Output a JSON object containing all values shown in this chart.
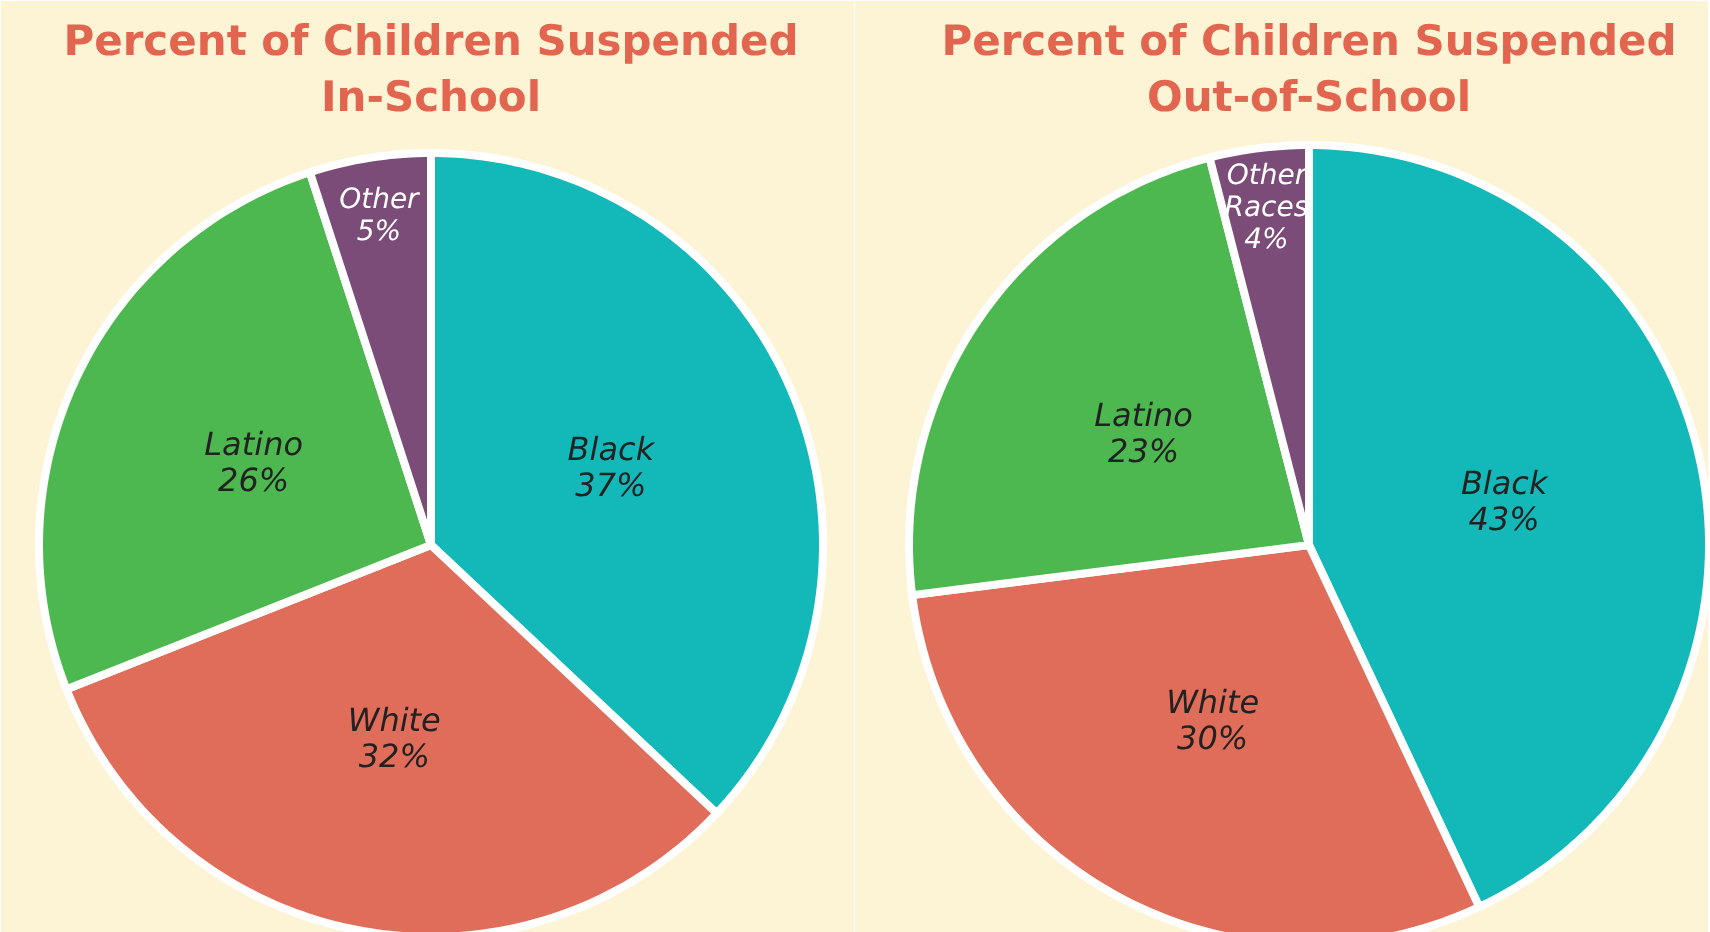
{
  "chart_data": [
    {
      "type": "pie",
      "title": "Percent of Children Suspended\nIn-School",
      "categories": [
        "Black",
        "White",
        "Latino",
        "Other"
      ],
      "values": [
        37,
        32,
        26,
        5
      ],
      "value_labels": [
        "37%",
        "32%",
        "26%",
        "5%"
      ],
      "colors": [
        "#13b9b9",
        "#e06c5a",
        "#4db84f",
        "#7b4c78"
      ],
      "legend": false
    },
    {
      "type": "pie",
      "title": "Percent of Children Suspended\nOut-of-School",
      "categories": [
        "Black",
        "White",
        "Latino",
        "Other\nRaces"
      ],
      "values": [
        43,
        30,
        23,
        4
      ],
      "value_labels": [
        "43%",
        "30%",
        "23%",
        "4%"
      ],
      "colors": [
        "#13b9b9",
        "#e06c5a",
        "#4db84f",
        "#7b4c78"
      ],
      "legend": false
    }
  ]
}
